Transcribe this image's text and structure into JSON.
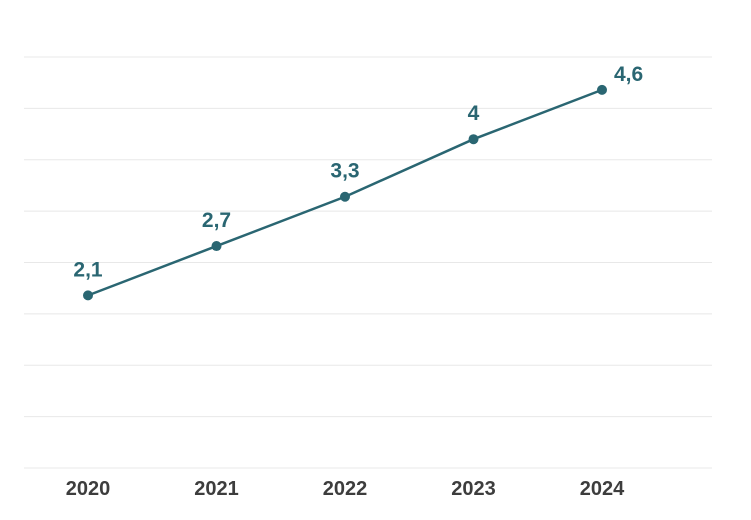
{
  "chart_data": {
    "type": "line",
    "title": "",
    "xlabel": "",
    "ylabel": "",
    "categories": [
      "2020",
      "2021",
      "2022",
      "2023",
      "2024"
    ],
    "series": [
      {
        "values": [
          2.1,
          2.7,
          3.3,
          4.0,
          4.6
        ],
        "value_labels": [
          "2,1",
          "2,7",
          "3,3",
          "4",
          "4,6"
        ]
      }
    ],
    "ylim": [
      0,
      5
    ],
    "grid": true,
    "legend": "none",
    "colors": {
      "series": "#2a6672",
      "tick_text": "#3d3d3d",
      "grid": "#e8e8e8"
    }
  }
}
